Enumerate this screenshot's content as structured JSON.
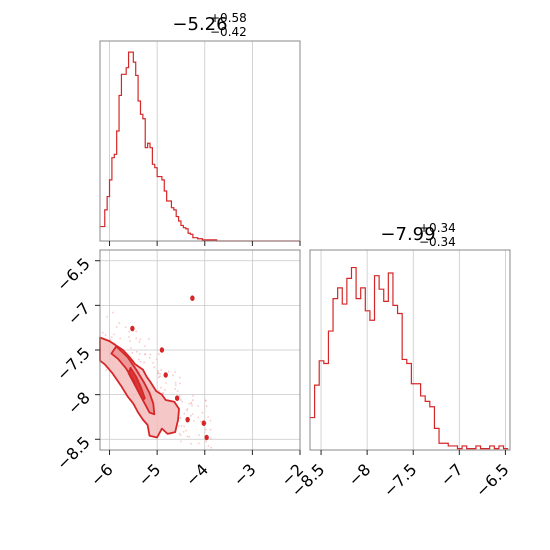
{
  "chart_data": [
    {
      "type": "histogram",
      "panel": "top-left",
      "title": {
        "median": "−5.26",
        "plus": "+0.58",
        "minus": "−0.42"
      },
      "xlim": [
        -6.2,
        -2.0
      ],
      "xticks": [
        -6,
        -5,
        -4,
        -3,
        -2
      ],
      "bin_width": 0.05,
      "x": [
        -6.2,
        -6.15,
        -6.1,
        -6.05,
        -6.0,
        -5.95,
        -5.9,
        -5.85,
        -5.8,
        -5.75,
        -5.7,
        -5.65,
        -5.6,
        -5.55,
        -5.5,
        -5.45,
        -5.4,
        -5.35,
        -5.3,
        -5.25,
        -5.2,
        -5.15,
        -5.1,
        -5.05,
        -5.0,
        -4.95,
        -4.9,
        -4.85,
        -4.8,
        -4.75,
        -4.7,
        -4.65,
        -4.6,
        -4.55,
        -4.5,
        -4.45,
        -4.4,
        -4.35,
        -4.3,
        -4.25,
        -4.2,
        -4.15,
        -4.1,
        -4.05,
        -4.0,
        -3.95,
        -3.9,
        -3.85,
        -3.8,
        -3.75,
        -3.7,
        -3.65,
        -3.6,
        -3.55,
        -3.5,
        -3.45,
        -3.4,
        -3.35,
        -3.3,
        -3.25,
        -3.2,
        -3.15,
        -3.1,
        -3.05,
        -3.0,
        -2.95,
        -2.9,
        -2.85,
        -2.8,
        -2.75,
        -2.7,
        -2.65,
        -2.6,
        -2.55,
        -2.5,
        -2.45,
        -2.4,
        -2.35,
        -2.3,
        -2.25,
        -2.2,
        -2.15,
        -2.1,
        -2.05
      ],
      "values": [
        13,
        13,
        28,
        40,
        55,
        75,
        78,
        99,
        131,
        150,
        150,
        156,
        170,
        170,
        161,
        149,
        126,
        114,
        110,
        84,
        88,
        84,
        69,
        66,
        58,
        58,
        55,
        45,
        36,
        36,
        30,
        28,
        22,
        18,
        14,
        12,
        11,
        7,
        6,
        3,
        3,
        2,
        2,
        1,
        1,
        1,
        1,
        1,
        1,
        0,
        0,
        0,
        0,
        0,
        0,
        0,
        0,
        0,
        0,
        0,
        0,
        0,
        0,
        0,
        0,
        0,
        0,
        0,
        0,
        0,
        0,
        0,
        0,
        0,
        0,
        0,
        0,
        0,
        0,
        0,
        0,
        0,
        0,
        0
      ],
      "ylim": [
        0,
        180
      ]
    },
    {
      "type": "contour",
      "panel": "bottom-left",
      "xlim": [
        -6.2,
        -2.0
      ],
      "ylim": [
        -8.62,
        -6.38
      ],
      "xticks": [
        -6,
        -5,
        -4,
        -3,
        -2
      ],
      "yticks": [
        -6.5,
        -7.0,
        -7.5,
        -8.0,
        -8.5
      ],
      "color": "#d62728",
      "levels": [
        {
          "fill": "#f4bdbd",
          "opacity": 0.85,
          "points": [
            [
              -6.2,
              -7.36
            ],
            [
              -6.0,
              -7.4
            ],
            [
              -5.72,
              -7.5
            ],
            [
              -5.58,
              -7.58
            ],
            [
              -5.46,
              -7.66
            ],
            [
              -5.3,
              -7.72
            ],
            [
              -5.22,
              -7.8
            ],
            [
              -5.14,
              -7.86
            ],
            [
              -5.02,
              -7.96
            ],
            [
              -4.9,
              -8.0
            ],
            [
              -4.82,
              -8.06
            ],
            [
              -4.64,
              -8.08
            ],
            [
              -4.54,
              -8.16
            ],
            [
              -4.56,
              -8.28
            ],
            [
              -4.62,
              -8.42
            ],
            [
              -4.78,
              -8.44
            ],
            [
              -4.9,
              -8.38
            ],
            [
              -5.0,
              -8.48
            ],
            [
              -5.16,
              -8.46
            ],
            [
              -5.2,
              -8.34
            ],
            [
              -5.3,
              -8.28
            ],
            [
              -5.4,
              -8.2
            ],
            [
              -5.5,
              -8.1
            ],
            [
              -5.62,
              -8.02
            ],
            [
              -5.76,
              -7.9
            ],
            [
              -5.94,
              -7.76
            ],
            [
              -6.1,
              -7.66
            ],
            [
              -6.2,
              -7.62
            ]
          ]
        },
        {
          "fill": "#ea8c8c",
          "opacity": 0.8,
          "points": [
            [
              -5.86,
              -7.46
            ],
            [
              -5.62,
              -7.58
            ],
            [
              -5.44,
              -7.72
            ],
            [
              -5.28,
              -7.86
            ],
            [
              -5.16,
              -7.98
            ],
            [
              -5.08,
              -8.1
            ],
            [
              -5.06,
              -8.22
            ],
            [
              -5.16,
              -8.2
            ],
            [
              -5.28,
              -8.08
            ],
            [
              -5.4,
              -7.96
            ],
            [
              -5.52,
              -7.82
            ],
            [
              -5.66,
              -7.7
            ],
            [
              -5.82,
              -7.6
            ],
            [
              -5.96,
              -7.54
            ]
          ]
        },
        {
          "fill": "#d62728",
          "opacity": 0.85,
          "points": [
            [
              -5.56,
              -7.7
            ],
            [
              -5.44,
              -7.8
            ],
            [
              -5.34,
              -7.92
            ],
            [
              -5.26,
              -8.04
            ],
            [
              -5.3,
              -8.06
            ],
            [
              -5.4,
              -7.96
            ],
            [
              -5.5,
              -7.86
            ],
            [
              -5.6,
              -7.76
            ]
          ]
        }
      ],
      "islands": [
        [
          -4.9,
          -7.5
        ],
        [
          -4.82,
          -7.78
        ],
        [
          -4.58,
          -8.04
        ],
        [
          -4.36,
          -8.28
        ],
        [
          -4.02,
          -8.32
        ],
        [
          -3.96,
          -8.48
        ],
        [
          -4.26,
          -6.92
        ],
        [
          -5.52,
          -7.26
        ]
      ],
      "n_scatter": 160
    },
    {
      "type": "histogram",
      "panel": "bottom-right",
      "title": {
        "median": "−7.99",
        "plus": "+0.34",
        "minus": "−0.34"
      },
      "xlim": [
        -8.62,
        -6.45
      ],
      "xticks": [
        -8.5,
        -8.0,
        -7.5,
        -7.0,
        -6.5
      ],
      "bin_width": 0.05,
      "x": [
        -8.62,
        -8.57,
        -8.52,
        -8.47,
        -8.42,
        -8.37,
        -8.32,
        -8.27,
        -8.22,
        -8.17,
        -8.12,
        -8.07,
        -8.02,
        -7.97,
        -7.92,
        -7.87,
        -7.82,
        -7.77,
        -7.72,
        -7.67,
        -7.62,
        -7.57,
        -7.52,
        -7.47,
        -7.42,
        -7.37,
        -7.32,
        -7.27,
        -7.22,
        -7.17,
        -7.12,
        -7.07,
        -7.02,
        -6.97,
        -6.92,
        -6.87,
        -6.82,
        -6.77,
        -6.72,
        -6.67,
        -6.62,
        -6.57,
        -6.52
      ],
      "values": [
        24,
        48,
        66,
        64,
        88,
        112,
        120,
        108,
        127,
        135,
        112,
        120,
        103,
        96,
        129,
        119,
        110,
        131,
        107,
        101,
        67,
        64,
        49,
        49,
        40,
        36,
        32,
        16,
        5,
        5,
        3,
        3,
        1,
        3,
        1,
        1,
        3,
        1,
        1,
        3,
        1,
        3,
        1
      ],
      "ylim": [
        0,
        148
      ]
    }
  ]
}
